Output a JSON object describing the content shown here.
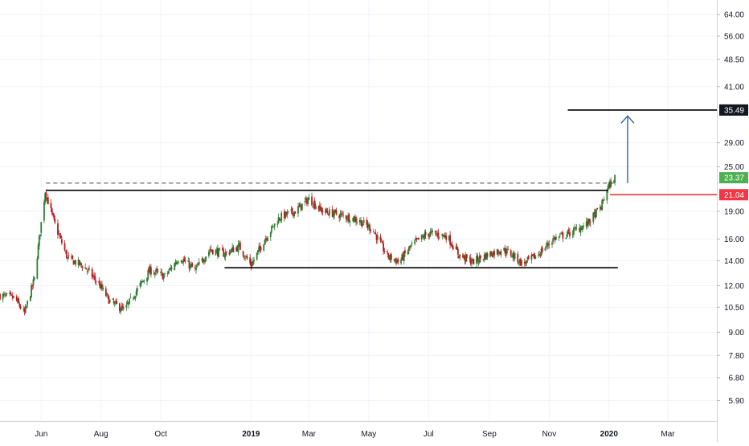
{
  "chart_data": {
    "type": "candlestick",
    "x_axis": {
      "tick_labels": [
        "Jun",
        "Aug",
        "Oct",
        "2019",
        "Mar",
        "May",
        "Jul",
        "Sep",
        "Nov",
        "2020",
        "Mar"
      ],
      "range": [
        "2018-04-20",
        "2020-04-20"
      ]
    },
    "y_axis": {
      "scale": "log",
      "range": [
        5.2,
        70
      ],
      "tick_labels": [
        "64.00",
        "56.00",
        "48.50",
        "41.00",
        "35.49",
        "29.00",
        "25.00",
        "23.37",
        "21.04",
        "19.00",
        "16.00",
        "14.00",
        "12.00",
        "10.50",
        "9.00",
        "7.80",
        "6.80",
        "5.90"
      ],
      "ticks": [
        64,
        56,
        48.5,
        41,
        29,
        25,
        19,
        16,
        14,
        12,
        10.5,
        9,
        7.8,
        6.8,
        5.9
      ]
    },
    "price_badges": [
      {
        "label": "35.49",
        "value": 35.49,
        "color": "#131722"
      },
      {
        "label": "23.37",
        "value": 23.37,
        "color": "#4caf50"
      },
      {
        "label": "21.04",
        "value": 21.04,
        "color": "#f23645"
      }
    ],
    "annotations": [
      {
        "kind": "horizontal_line",
        "value": 35.49,
        "from": "2019-11-20",
        "to": "2020-04-20",
        "color": "#000000"
      },
      {
        "kind": "horizontal_line",
        "value": 21.6,
        "from": "2018-06-06",
        "to": "2019-12-31",
        "color": "#000000"
      },
      {
        "kind": "horizontal_line",
        "value": 13.4,
        "from": "2018-12-05",
        "to": "2020-01-10",
        "color": "#000000"
      },
      {
        "kind": "dashed_line",
        "value": 22.6,
        "from": "2018-06-06",
        "to": "2020-01-07",
        "color": "#444444"
      },
      {
        "kind": "horizontal_line",
        "value": 21.04,
        "from": "2020-01-02",
        "to": "2020-04-20",
        "color": "#e53935"
      },
      {
        "kind": "arrow_up",
        "x": "2020-01-20",
        "from_value": 22.6,
        "to_value": 34.2,
        "color": "#1e5a9c"
      }
    ],
    "series": [
      {
        "name": "",
        "keypoints": [
          [
            "2018-04-20",
            11.3
          ],
          [
            "2018-05-05",
            11.1
          ],
          [
            "2018-05-15",
            10.1
          ],
          [
            "2018-05-25",
            12.5
          ],
          [
            "2018-06-05",
            21.5
          ],
          [
            "2018-06-15",
            17.5
          ],
          [
            "2018-06-28",
            14.2
          ],
          [
            "2018-07-15",
            13.5
          ],
          [
            "2018-07-30",
            12.1
          ],
          [
            "2018-08-10",
            10.9
          ],
          [
            "2018-08-25",
            10.3
          ],
          [
            "2018-09-05",
            11.5
          ],
          [
            "2018-09-20",
            13.2
          ],
          [
            "2018-10-05",
            12.7
          ],
          [
            "2018-10-20",
            14.3
          ],
          [
            "2018-11-05",
            13.2
          ],
          [
            "2018-11-20",
            15.0
          ],
          [
            "2018-12-05",
            14.6
          ],
          [
            "2018-12-20",
            15.3
          ],
          [
            "2019-01-01",
            13.6
          ],
          [
            "2019-01-15",
            16.0
          ],
          [
            "2019-01-30",
            18.3
          ],
          [
            "2019-02-15",
            19.0
          ],
          [
            "2019-03-01",
            20.5
          ],
          [
            "2019-03-15",
            19.0
          ],
          [
            "2019-04-01",
            18.6
          ],
          [
            "2019-04-20",
            18.0
          ],
          [
            "2019-05-05",
            17.0
          ],
          [
            "2019-05-20",
            14.4
          ],
          [
            "2019-06-01",
            13.9
          ],
          [
            "2019-06-15",
            15.5
          ],
          [
            "2019-07-01",
            16.6
          ],
          [
            "2019-07-20",
            16.3
          ],
          [
            "2019-08-01",
            14.5
          ],
          [
            "2019-08-15",
            13.9
          ],
          [
            "2019-09-01",
            14.6
          ],
          [
            "2019-09-15",
            15.0
          ],
          [
            "2019-09-25",
            14.5
          ],
          [
            "2019-10-05",
            13.7
          ],
          [
            "2019-10-20",
            14.5
          ],
          [
            "2019-11-05",
            16.0
          ],
          [
            "2019-11-20",
            16.5
          ],
          [
            "2019-12-10",
            17.6
          ],
          [
            "2019-12-24",
            19.5
          ],
          [
            "2019-12-30",
            21.8
          ],
          [
            "2020-01-07",
            23.4
          ]
        ]
      }
    ]
  }
}
